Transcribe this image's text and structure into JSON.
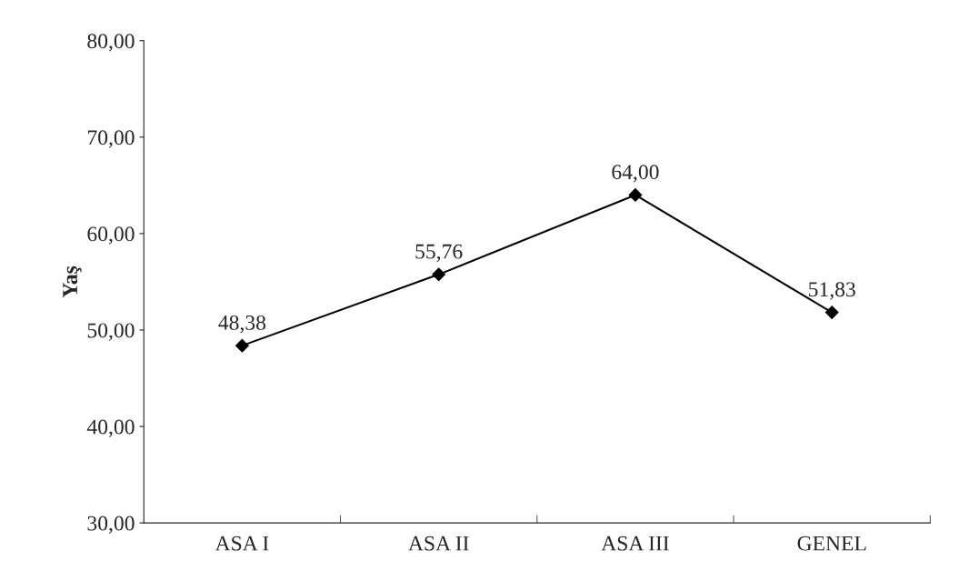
{
  "chart_data": {
    "type": "line",
    "ylabel": "Yaş",
    "categories": [
      "ASA I",
      "ASA II",
      "ASA III",
      "GENEL"
    ],
    "series": [
      {
        "color": "#000000",
        "values": [
          48.38,
          55.76,
          64.0,
          51.83
        ],
        "value_labels": [
          "48,38",
          "55,76",
          "64,00",
          "51,83"
        ]
      }
    ],
    "ylim": [
      30,
      80
    ],
    "yticks": [
      {
        "value": 30,
        "label": "30,00"
      },
      {
        "value": 40,
        "label": "40,00"
      },
      {
        "value": 50,
        "label": "50,00"
      },
      {
        "value": 60,
        "label": "60,00"
      },
      {
        "value": 70,
        "label": "70,00"
      },
      {
        "value": 80,
        "label": "80,00"
      }
    ],
    "grid": false,
    "legend": false,
    "marker": "diamond",
    "line_style": "solid"
  }
}
